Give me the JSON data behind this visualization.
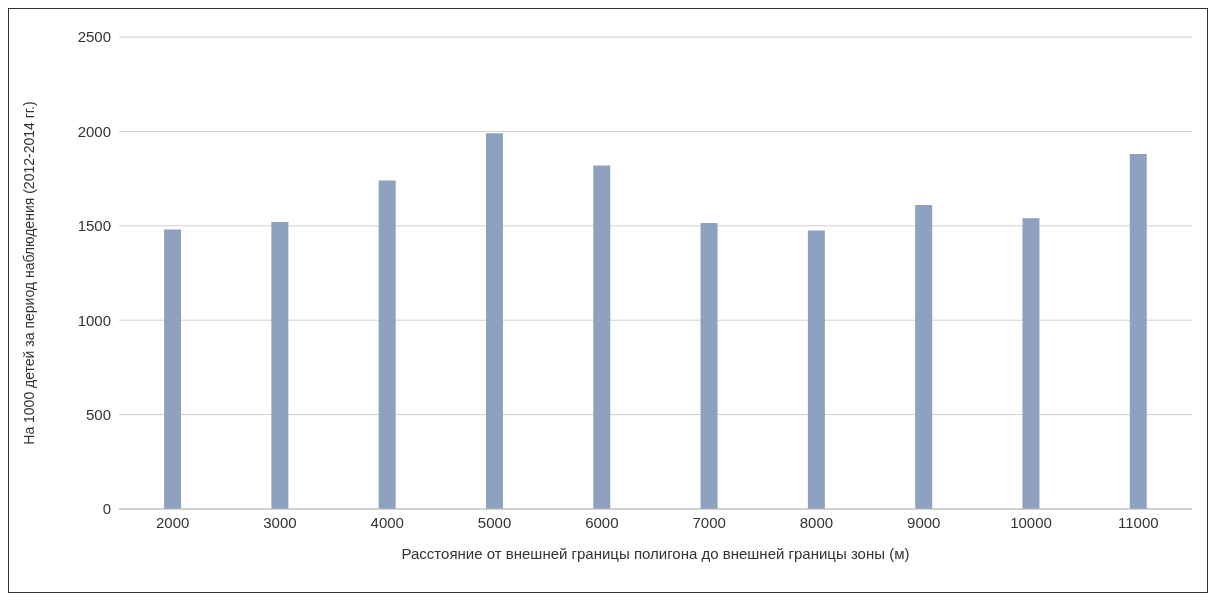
{
  "chart_data": {
    "type": "bar",
    "xlabel": "Расстояние от внешней границы полигона до внешней границы зоны (м)",
    "ylabel": "На 1000 детей за период наблюдения (2012-2014 гг.)",
    "categories": [
      "2000",
      "3000",
      "4000",
      "5000",
      "6000",
      "7000",
      "8000",
      "9000",
      "10000",
      "11000"
    ],
    "values": [
      1480,
      1520,
      1740,
      1990,
      1820,
      1515,
      1475,
      1610,
      1540,
      1880
    ],
    "color": "#8ea2bf",
    "ylim": [
      0,
      2500
    ],
    "yticks": [
      0,
      500,
      1000,
      1500,
      2000,
      2500
    ],
    "grid": "y"
  }
}
